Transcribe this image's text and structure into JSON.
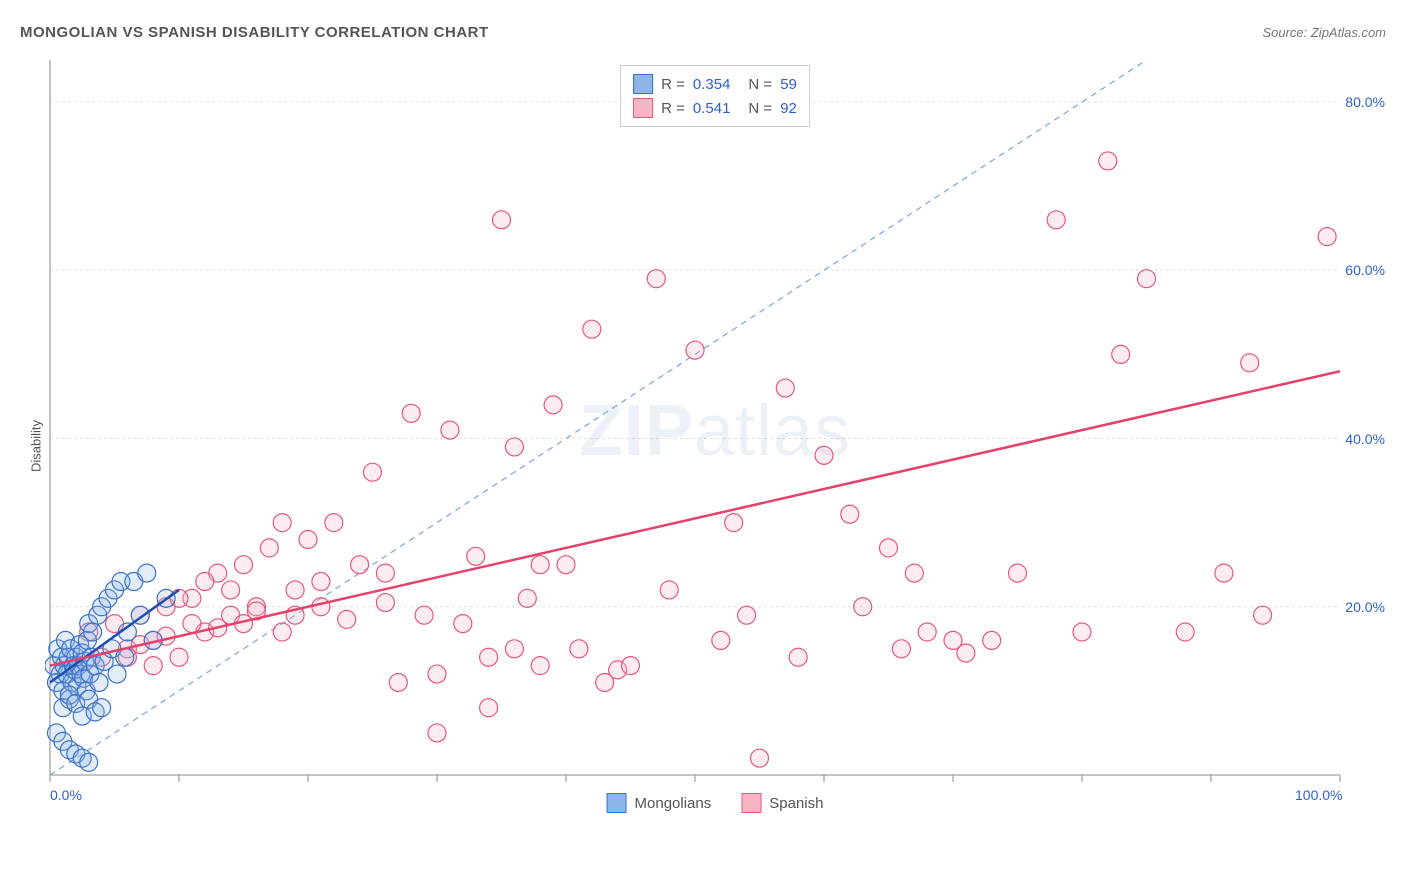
{
  "title": "MONGOLIAN VS SPANISH DISABILITY CORRELATION CHART",
  "source": "Source: ZipAtlas.com",
  "y_axis_label": "Disability",
  "watermark": {
    "bold": "ZIP",
    "light": "atlas"
  },
  "chart": {
    "type": "scatter",
    "background_color": "#ffffff",
    "grid_color": "#e0e0e0",
    "axis_color": "#888888",
    "tick_color": "#888888",
    "xlim": [
      0,
      100
    ],
    "ylim": [
      0,
      85
    ],
    "x_ticks": [
      0,
      10,
      20,
      30,
      40,
      50,
      60,
      70,
      80,
      90,
      100
    ],
    "y_grid": [
      20,
      40,
      60,
      80
    ],
    "x_tick_labels": {
      "0": "0.0%",
      "100": "100.0%"
    },
    "y_tick_labels": {
      "20": "20.0%",
      "40": "40.0%",
      "60": "60.0%",
      "80": "80.0%"
    },
    "marker_radius": 9,
    "marker_stroke_width": 1.2,
    "marker_fill_opacity": 0.25,
    "diagonal_ref_line": {
      "from": [
        0,
        0
      ],
      "to": [
        85,
        85
      ],
      "color": "#7fa3d9",
      "dash": "6,5",
      "width": 1.2
    },
    "series": [
      {
        "name": "Mongolians",
        "color_fill": "#8fb5e8",
        "color_stroke": "#3a72c9",
        "R": "0.354",
        "N": "59",
        "regression": {
          "from": [
            0,
            11
          ],
          "to": [
            10,
            22
          ],
          "color": "#1a4fb0",
          "width": 2.5
        },
        "points": [
          [
            0.3,
            13
          ],
          [
            0.5,
            11
          ],
          [
            0.6,
            15
          ],
          [
            0.8,
            12
          ],
          [
            0.9,
            14
          ],
          [
            1.0,
            10
          ],
          [
            1.1,
            13
          ],
          [
            1.2,
            16
          ],
          [
            1.3,
            12
          ],
          [
            1.4,
            14
          ],
          [
            1.5,
            9
          ],
          [
            1.6,
            15
          ],
          [
            1.7,
            11
          ],
          [
            1.8,
            13
          ],
          [
            1.9,
            12.5
          ],
          [
            2.0,
            14
          ],
          [
            2.1,
            10.5
          ],
          [
            2.2,
            13
          ],
          [
            2.3,
            15.5
          ],
          [
            2.4,
            12
          ],
          [
            2.5,
            14.5
          ],
          [
            2.6,
            11.5
          ],
          [
            2.7,
            13.5
          ],
          [
            2.8,
            10
          ],
          [
            2.9,
            16
          ],
          [
            3.0,
            18
          ],
          [
            3.1,
            12
          ],
          [
            3.2,
            14
          ],
          [
            3.3,
            17
          ],
          [
            3.5,
            13
          ],
          [
            3.7,
            19
          ],
          [
            3.8,
            11
          ],
          [
            4.0,
            20
          ],
          [
            4.2,
            13.5
          ],
          [
            4.5,
            21
          ],
          [
            4.8,
            15
          ],
          [
            5.0,
            22
          ],
          [
            5.2,
            12
          ],
          [
            5.5,
            23
          ],
          [
            5.8,
            14
          ],
          [
            6.0,
            17
          ],
          [
            6.5,
            23
          ],
          [
            7.0,
            19
          ],
          [
            7.5,
            24
          ],
          [
            8.0,
            16
          ],
          [
            1.0,
            8
          ],
          [
            1.5,
            9.5
          ],
          [
            2.0,
            8.5
          ],
          [
            2.5,
            7
          ],
          [
            3.0,
            9
          ],
          [
            3.5,
            7.5
          ],
          [
            4.0,
            8
          ],
          [
            0.5,
            5
          ],
          [
            1.0,
            4
          ],
          [
            1.5,
            3
          ],
          [
            2.0,
            2.5
          ],
          [
            2.5,
            2
          ],
          [
            3.0,
            1.5
          ],
          [
            9.0,
            21
          ]
        ]
      },
      {
        "name": "Spanish",
        "color_fill": "#f5b5c5",
        "color_stroke": "#e6577e",
        "R": "0.541",
        "N": "92",
        "regression": {
          "from": [
            0,
            13
          ],
          "to": [
            100,
            48
          ],
          "color": "#e6416b",
          "width": 2.5
        },
        "points": [
          [
            3,
            17
          ],
          [
            4,
            14
          ],
          [
            5,
            18
          ],
          [
            6,
            15
          ],
          [
            7,
            19
          ],
          [
            8,
            16
          ],
          [
            9,
            20
          ],
          [
            10,
            14
          ],
          [
            11,
            21
          ],
          [
            12,
            17
          ],
          [
            13,
            24
          ],
          [
            14,
            19
          ],
          [
            15,
            25
          ],
          [
            16,
            20
          ],
          [
            17,
            27
          ],
          [
            18,
            30
          ],
          [
            19,
            22
          ],
          [
            20,
            28
          ],
          [
            21,
            23
          ],
          [
            22,
            30
          ],
          [
            24,
            25
          ],
          [
            25,
            36
          ],
          [
            26,
            24
          ],
          [
            28,
            43
          ],
          [
            29,
            19
          ],
          [
            30,
            12
          ],
          [
            31,
            41
          ],
          [
            32,
            18
          ],
          [
            33,
            26
          ],
          [
            34,
            14
          ],
          [
            35,
            66
          ],
          [
            36,
            39
          ],
          [
            37,
            21
          ],
          [
            38,
            13
          ],
          [
            39,
            44
          ],
          [
            40,
            25
          ],
          [
            41,
            15
          ],
          [
            42,
            53
          ],
          [
            43,
            11
          ],
          [
            44,
            12.5
          ],
          [
            47,
            59
          ],
          [
            48,
            22
          ],
          [
            50,
            50.5
          ],
          [
            52,
            16
          ],
          [
            53,
            30
          ],
          [
            54,
            19
          ],
          [
            55,
            2
          ],
          [
            57,
            46
          ],
          [
            58,
            14
          ],
          [
            60,
            38
          ],
          [
            62,
            31
          ],
          [
            63,
            20
          ],
          [
            65,
            27
          ],
          [
            67,
            24
          ],
          [
            68,
            17
          ],
          [
            70,
            16
          ],
          [
            71,
            14.5
          ],
          [
            75,
            24
          ],
          [
            78,
            66
          ],
          [
            80,
            17
          ],
          [
            82,
            73
          ],
          [
            83,
            50
          ],
          [
            85,
            59
          ],
          [
            88,
            17
          ],
          [
            93,
            49
          ],
          [
            94,
            19
          ],
          [
            99,
            64
          ],
          [
            10,
            21
          ],
          [
            11,
            18
          ],
          [
            12,
            23
          ],
          [
            13,
            17.5
          ],
          [
            14,
            22
          ],
          [
            15,
            18
          ],
          [
            16,
            19.5
          ],
          [
            6,
            14
          ],
          [
            7,
            15.5
          ],
          [
            8,
            13
          ],
          [
            9,
            16.5
          ],
          [
            18,
            17
          ],
          [
            19,
            19
          ],
          [
            21,
            20
          ],
          [
            23,
            18.5
          ],
          [
            26,
            20.5
          ],
          [
            30,
            5
          ],
          [
            34,
            8
          ],
          [
            36,
            15
          ],
          [
            38,
            25
          ],
          [
            27,
            11
          ],
          [
            45,
            13
          ],
          [
            66,
            15
          ],
          [
            73,
            16
          ],
          [
            91,
            24
          ]
        ]
      }
    ]
  },
  "legend_bottom": [
    {
      "label": "Mongolians",
      "fill": "#8fb5e8",
      "stroke": "#3a72c9"
    },
    {
      "label": "Spanish",
      "fill": "#f5b5c5",
      "stroke": "#e6577e"
    }
  ]
}
